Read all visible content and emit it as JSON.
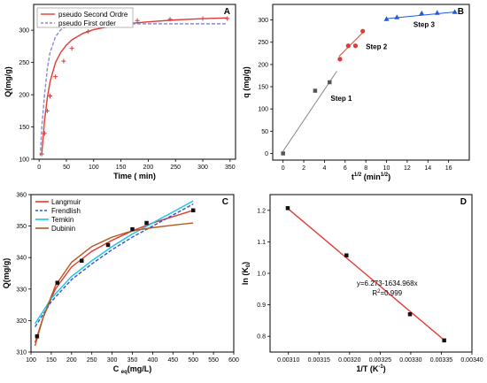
{
  "chart_data": [
    {
      "panel": "A",
      "type": "scatter",
      "xlabel": "Time ( min)",
      "ylabel": "Q(mg/g)",
      "xlim": [
        -10,
        360
      ],
      "ylim": [
        100,
        340
      ],
      "xticks": [
        0,
        50,
        100,
        150,
        200,
        250,
        300,
        350
      ],
      "yticks": [
        100,
        150,
        200,
        250,
        300
      ],
      "legend_position": "top-left",
      "points": {
        "x": [
          5,
          10,
          15,
          20,
          30,
          45,
          60,
          90,
          120,
          180,
          240,
          300,
          345
        ],
        "y": [
          108,
          140,
          175,
          198,
          228,
          252,
          272,
          298,
          308,
          315,
          317,
          318,
          318
        ]
      },
      "series": [
        {
          "name": "pseudo Second Ordre",
          "color": "#e53935",
          "style": "solid",
          "x": [
            5,
            10,
            15,
            20,
            30,
            40,
            50,
            60,
            80,
            100,
            130,
            160,
            200,
            250,
            300,
            345
          ],
          "y": [
            110,
            160,
            195,
            220,
            250,
            266,
            277,
            285,
            295,
            301,
            306,
            310,
            313,
            316,
            318,
            319
          ]
        },
        {
          "name": "pseudo First order",
          "color": "#8a8ad0",
          "style": "dashed",
          "x": [
            2,
            5,
            10,
            15,
            20,
            30,
            40,
            50,
            60,
            80,
            100,
            150,
            200,
            300,
            345
          ],
          "y": [
            105,
            150,
            200,
            240,
            265,
            290,
            301,
            306,
            308,
            310,
            310,
            310,
            310,
            310,
            310
          ]
        }
      ]
    },
    {
      "panel": "B",
      "type": "scatter",
      "xlabel": "t1/2 (min1/2)",
      "ylabel": "q (mg/g)",
      "xlim": [
        -1,
        18
      ],
      "ylim": [
        -15,
        335
      ],
      "xticks": [
        0,
        2,
        4,
        6,
        8,
        10,
        12,
        14,
        16
      ],
      "yticks": [
        0,
        50,
        100,
        150,
        200,
        250,
        300
      ],
      "annotations": [
        "Step 1",
        "Step 2",
        "Step 3"
      ],
      "series": [
        {
          "name": "Step 1",
          "color": "#555555",
          "marker": "square",
          "x": [
            0,
            3.1,
            4.5
          ],
          "y": [
            0,
            141,
            160
          ],
          "fit": {
            "x": [
              0,
              5.2
            ],
            "y": [
              5,
              185
            ]
          }
        },
        {
          "name": "Step 2",
          "color": "#e53935",
          "marker": "circle",
          "x": [
            5.5,
            6.3,
            7.0,
            7.7
          ],
          "y": [
            212,
            242,
            242,
            275
          ],
          "fit": {
            "x": [
              5.4,
              7.8
            ],
            "y": [
              218,
              274
            ]
          }
        },
        {
          "name": "Step 3",
          "color": "#1e5adc",
          "marker": "triangle",
          "x": [
            10.0,
            11.0,
            13.4,
            14.9,
            16.6
          ],
          "y": [
            302,
            306,
            315,
            316,
            318
          ],
          "fit": {
            "x": [
              10.0,
              16.6
            ],
            "y": [
              303,
              318
            ]
          }
        }
      ]
    },
    {
      "panel": "C",
      "type": "scatter",
      "xlabel": "C eq(mg/L)",
      "ylabel": "Q(mg/g)",
      "xlim": [
        100,
        600
      ],
      "ylim": [
        310,
        360
      ],
      "xticks": [
        100,
        150,
        200,
        250,
        300,
        350,
        400,
        450,
        500,
        550,
        600
      ],
      "yticks": [
        310,
        320,
        330,
        340,
        350,
        360
      ],
      "legend_position": "top-left",
      "points": {
        "x": [
          115,
          165,
          225,
          290,
          350,
          385,
          500
        ],
        "y": [
          315,
          332,
          339,
          344,
          349,
          351,
          355
        ]
      },
      "series": [
        {
          "name": "Langmuir",
          "color": "#e53935",
          "style": "solid",
          "x": [
            110,
            130,
            160,
            200,
            250,
            300,
            350,
            400,
            450,
            500
          ],
          "y": [
            313,
            321,
            330,
            337,
            342,
            345.5,
            348.5,
            351,
            353,
            355
          ]
        },
        {
          "name": "Frendlish",
          "color": "#2e56d4",
          "style": "dashed",
          "x": [
            110,
            150,
            200,
            250,
            300,
            350,
            400,
            450,
            500
          ],
          "y": [
            318,
            326,
            333,
            338,
            342.5,
            346.5,
            350,
            353.5,
            357
          ]
        },
        {
          "name": "Temkin",
          "color": "#1bc4e6",
          "style": "solid",
          "x": [
            110,
            150,
            200,
            250,
            300,
            350,
            400,
            450,
            500
          ],
          "y": [
            319,
            327,
            334,
            339,
            343.5,
            347.5,
            351,
            354.5,
            358
          ]
        },
        {
          "name": "Dubinin",
          "color": "#b35a1f",
          "style": "solid",
          "x": [
            110,
            130,
            160,
            200,
            250,
            300,
            350,
            400,
            450,
            500
          ],
          "y": [
            312,
            321,
            331,
            338.5,
            343.5,
            346.5,
            348.5,
            349.5,
            350.3,
            351
          ]
        }
      ]
    },
    {
      "panel": "D",
      "type": "scatter",
      "xlabel": "1/T (K-1)",
      "ylabel": "ln (K0)",
      "xlim": [
        0.00307,
        0.0034
      ],
      "ylim": [
        0.75,
        1.25
      ],
      "xticks": [
        0.0031,
        0.00315,
        0.0032,
        0.00325,
        0.0033,
        0.00335,
        0.0034
      ],
      "xtick_labels": [
        "0.00310",
        "0.00315",
        "0.00320",
        "0.00325",
        "0.00330",
        "0.00335",
        "0.00340"
      ],
      "yticks": [
        0.8,
        0.9,
        1.0,
        1.1,
        1.2
      ],
      "ytick_labels": [
        "0.8",
        "0.9",
        "1.0",
        "1.1",
        "1.2"
      ],
      "equation": "y=6.273-1634.968x",
      "r2": "R2=0.999",
      "points": {
        "x": [
          0.0030989,
          0.0031949,
          0.0032987,
          0.0033546
        ],
        "y": [
          1.207,
          1.057,
          0.87,
          0.787
        ]
      },
      "fit": {
        "color": "#e53935",
        "x": [
          0.0030989,
          0.0033546
        ],
        "y": [
          1.206,
          0.788
        ]
      }
    }
  ]
}
